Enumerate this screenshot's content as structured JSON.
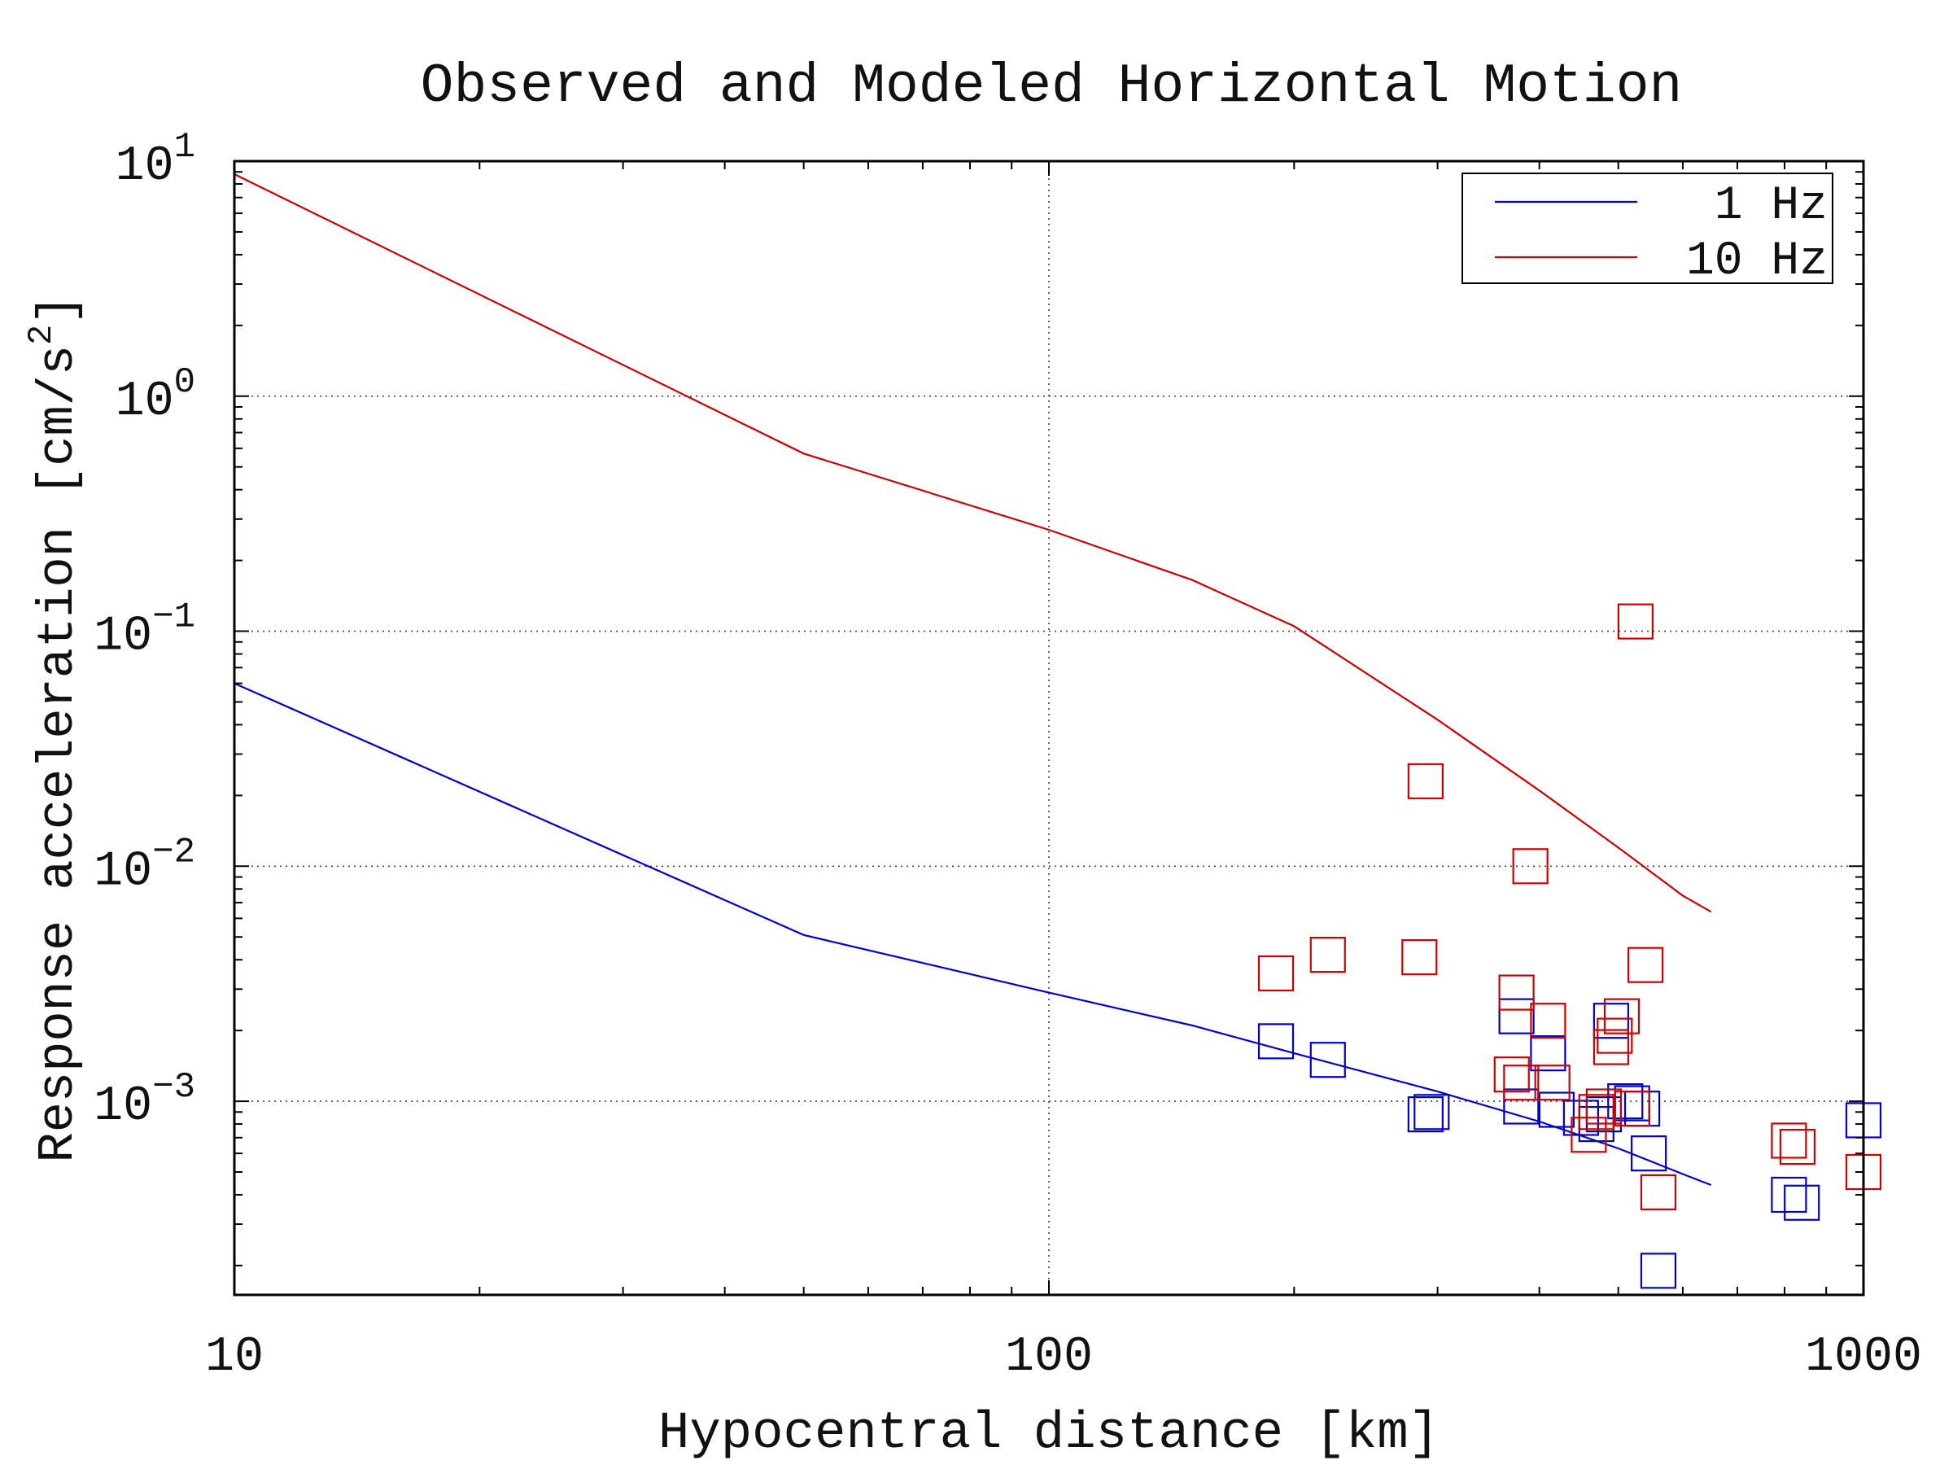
{
  "chart_data": {
    "type": "line",
    "title": "Observed and Modeled Horizontal Motion",
    "xlabel": "Hypocentral distance [km]",
    "ylabel": "Response acceleration [cm/s²]",
    "ylabel_parts": {
      "main": "Response acceleration [cm/s",
      "sup": "2",
      "close": "]"
    },
    "x_scale": "log",
    "y_scale": "log",
    "xlim": [
      10,
      1000
    ],
    "ylim": [
      0.00015,
      10
    ],
    "x_ticks": [
      {
        "value": 10,
        "label": "10"
      },
      {
        "value": 100,
        "label": "100"
      },
      {
        "value": 1000,
        "label": "1000"
      }
    ],
    "y_ticks": [
      {
        "value": 10,
        "base": "10",
        "exp": "1"
      },
      {
        "value": 1,
        "base": "10",
        "exp": "0"
      },
      {
        "value": 0.1,
        "base": "10",
        "exp": "−1"
      },
      {
        "value": 0.01,
        "base": "10",
        "exp": "−2"
      },
      {
        "value": 0.001,
        "base": "10",
        "exp": "−3"
      }
    ],
    "grid": true,
    "legend_position": "top-right",
    "series": [
      {
        "name": "1 Hz",
        "color": "#0000cc",
        "line": [
          [
            10,
            0.06
          ],
          [
            50,
            0.0051
          ],
          [
            100,
            0.0029
          ],
          [
            150,
            0.0021
          ],
          [
            200,
            0.0016
          ],
          [
            300,
            0.0011
          ],
          [
            400,
            0.00082
          ],
          [
            500,
            0.00063
          ],
          [
            600,
            0.00049
          ],
          [
            650,
            0.00044
          ]
        ],
        "points": [
          [
            190,
            0.0018
          ],
          [
            220,
            0.0015
          ],
          [
            290,
            0.00088
          ],
          [
            295,
            0.0009
          ],
          [
            375,
            0.0023
          ],
          [
            380,
            0.00095
          ],
          [
            410,
            0.0016
          ],
          [
            420,
            0.00092
          ],
          [
            450,
            0.00085
          ],
          [
            470,
            0.0008
          ],
          [
            480,
            0.00088
          ],
          [
            490,
            0.0022
          ],
          [
            510,
            0.001
          ],
          [
            520,
            0.00098
          ],
          [
            535,
            0.00093
          ],
          [
            545,
            0.0006
          ],
          [
            560,
            0.00019
          ],
          [
            810,
            0.0004
          ],
          [
            840,
            0.00037
          ],
          [
            1000,
            0.00083
          ]
        ]
      },
      {
        "name": "10 Hz",
        "color": "#cc0000",
        "line": [
          [
            10,
            8.8
          ],
          [
            50,
            0.57
          ],
          [
            100,
            0.27
          ],
          [
            150,
            0.165
          ],
          [
            200,
            0.105
          ],
          [
            300,
            0.042
          ],
          [
            400,
            0.021
          ],
          [
            500,
            0.012
          ],
          [
            600,
            0.0075
          ],
          [
            650,
            0.0064
          ]
        ],
        "points": [
          [
            190,
            0.0035
          ],
          [
            220,
            0.0042
          ],
          [
            285,
            0.0041
          ],
          [
            290,
            0.023
          ],
          [
            370,
            0.0013
          ],
          [
            375,
            0.0029
          ],
          [
            380,
            0.0012
          ],
          [
            390,
            0.01
          ],
          [
            410,
            0.0022
          ],
          [
            415,
            0.0012
          ],
          [
            460,
            0.00072
          ],
          [
            470,
            0.0009
          ],
          [
            480,
            0.00095
          ],
          [
            490,
            0.0017
          ],
          [
            495,
            0.0019
          ],
          [
            505,
            0.0023
          ],
          [
            520,
            0.00093
          ],
          [
            525,
            0.11
          ],
          [
            540,
            0.0038
          ],
          [
            560,
            0.00041
          ],
          [
            810,
            0.00068
          ],
          [
            830,
            0.00064
          ],
          [
            1000,
            0.0005
          ]
        ]
      }
    ]
  }
}
